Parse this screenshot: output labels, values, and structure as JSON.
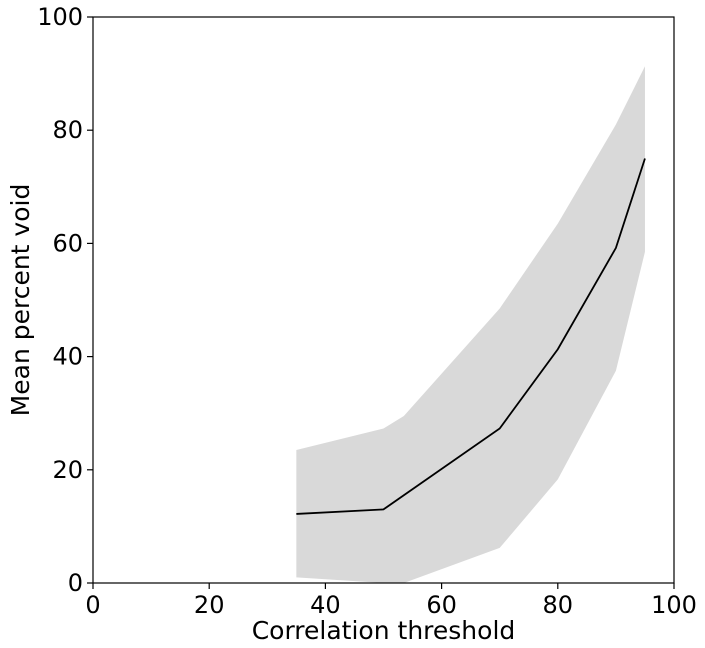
{
  "chart_data": {
    "type": "line",
    "title": "",
    "xlabel": "Correlation threshold",
    "ylabel": "Mean percent void",
    "xlim": [
      0,
      100
    ],
    "ylim": [
      0,
      100
    ],
    "xticks": [
      0,
      20,
      40,
      60,
      80,
      100
    ],
    "yticks": [
      0,
      20,
      40,
      60,
      80,
      100
    ],
    "xtick_labels": [
      "0",
      "20",
      "40",
      "60",
      "80",
      "100"
    ],
    "ytick_labels": [
      "0",
      "20",
      "40",
      "60",
      "80",
      "100"
    ],
    "grid": false,
    "legend": "none",
    "series": [
      {
        "x": [
          35,
          50,
          70,
          80,
          90,
          95
        ],
        "y": [
          12.2,
          13.0,
          27.3,
          41.3,
          59.2,
          75.0
        ],
        "color": "#000000"
      }
    ],
    "band": {
      "x": [
        35,
        50,
        53.5,
        70,
        80,
        90,
        95
      ],
      "upper": [
        23.5,
        27.3,
        29.5,
        48.5,
        63.5,
        81.0,
        91.3
      ],
      "lower": [
        1.0,
        0.0,
        0.0,
        6.2,
        18.3,
        37.5,
        58.5
      ],
      "color": "#d9d9d9"
    }
  }
}
